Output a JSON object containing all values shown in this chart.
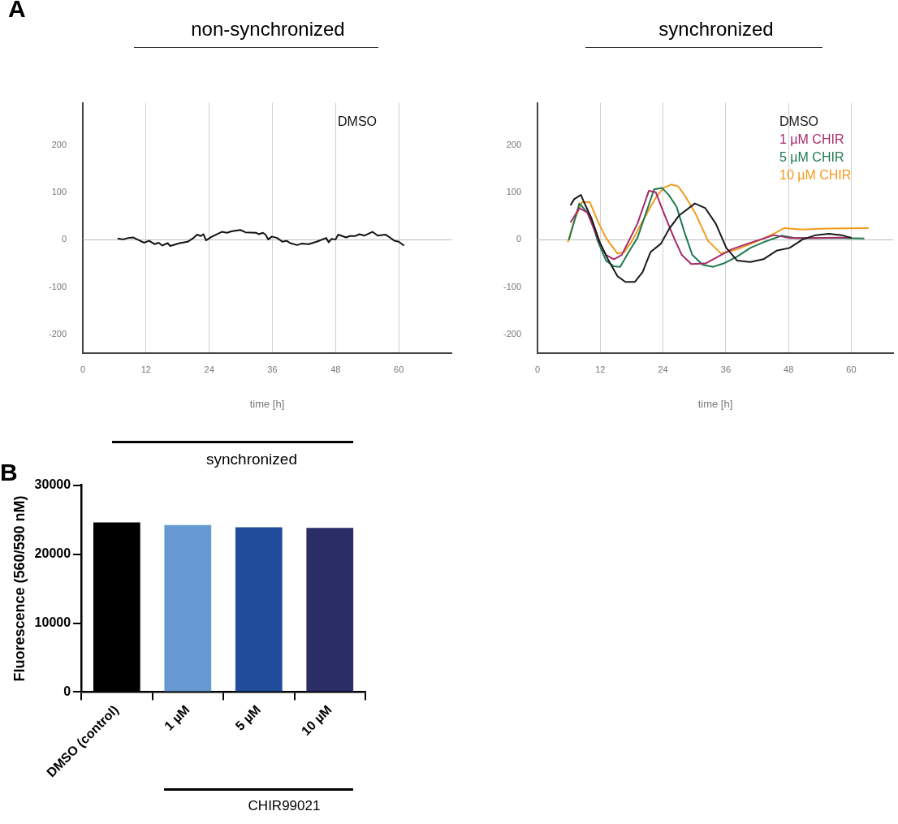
{
  "chart_data": [
    {
      "type": "line",
      "title": "non-synchronized",
      "xlabel": "time [h]",
      "annotations": [
        "A"
      ],
      "xlim": [
        0,
        70
      ],
      "xticks": [
        0,
        12,
        24,
        36,
        48,
        60
      ],
      "ylim": [
        -240,
        290
      ],
      "yticks": [
        -200,
        -100,
        0,
        100,
        200
      ],
      "grid": "x",
      "legend": "top right",
      "marker": "none",
      "line_style": "solid",
      "ref_lines": [
        {
          "axis": "y",
          "value": 0,
          "color": "#bbbbbb"
        }
      ],
      "series": [
        {
          "name": "DMSO",
          "color": "#111111",
          "x": [
            6.6,
            7.6,
            8.6,
            9.6,
            11.6,
            12.6,
            13.6,
            14.4,
            15.1,
            16.1,
            16.6,
            18.4,
            19.9,
            20.9,
            21.7,
            22.4,
            22.9,
            23.4,
            24.4,
            26.4,
            27.4,
            28.2,
            29.9,
            30.9,
            32.9,
            33.4,
            34.2,
            34.7,
            35.2,
            35.9,
            36.9,
            37.9,
            38.7,
            39.4,
            40.7,
            41.5,
            42.9,
            44.4,
            46.2,
            46.7,
            47.2,
            48,
            48.5,
            50,
            50.7,
            51.7,
            52.5,
            53.5,
            55,
            56,
            57.5,
            58.3,
            59.2,
            60,
            61
          ],
          "values": [
            3,
            1,
            4,
            5,
            -6,
            -2,
            -9,
            -6,
            -12,
            -7,
            -13,
            -7,
            -4,
            3,
            11,
            8,
            12,
            -1,
            6,
            17,
            15,
            18,
            21,
            16,
            15,
            12,
            15,
            11,
            1,
            7,
            4,
            -4,
            -2,
            -7,
            -11,
            -8,
            -9,
            -4,
            4,
            -5,
            2,
            1,
            11,
            5,
            8,
            8,
            12,
            9,
            17,
            9,
            11,
            5,
            -2,
            -4,
            -12
          ]
        }
      ]
    },
    {
      "type": "line",
      "title": "synchronized",
      "xlabel": "time [h]",
      "xlim": [
        0,
        68
      ],
      "xticks": [
        0,
        12,
        24,
        36,
        48,
        60
      ],
      "ylim": [
        -240,
        290
      ],
      "yticks": [
        -200,
        -100,
        0,
        100,
        200
      ],
      "grid": "x",
      "legend": "top right",
      "marker": "none",
      "line_style": "solid",
      "ref_lines": [
        {
          "axis": "y",
          "value": 0,
          "color": "#bbbbbb"
        }
      ],
      "series": [
        {
          "name": "DMSO",
          "color": "#1a1a1a",
          "x": [
            6.3,
            7,
            8.3,
            8.8,
            10.3,
            12,
            13.6,
            15.3,
            16.8,
            18.6,
            20.1,
            21.6,
            23.6,
            25.1,
            27.1,
            30.1,
            32.1,
            34.1,
            36.1,
            38.2,
            40.7,
            43.2,
            45.7,
            48.2,
            50.7,
            53.2,
            55.7,
            58.2,
            60
          ],
          "values": [
            73,
            86,
            95,
            82,
            46,
            -8,
            -44,
            -77,
            -89,
            -89,
            -68,
            -26,
            -8,
            22,
            52,
            77,
            67,
            34,
            -17,
            -44,
            -47,
            -41,
            -23,
            -17,
            1,
            10,
            13,
            10,
            4
          ]
        },
        {
          "name": "1 µM CHIR",
          "color": "#a52a6a",
          "x": [
            6.3,
            8,
            9.5,
            11.5,
            13.1,
            14.6,
            16.1,
            17.6,
            19.1,
            21.3,
            22.6,
            24.1,
            26.1,
            27.6,
            29.4,
            32.1,
            34.1,
            37.1,
            40.2,
            42.7,
            45.2,
            48.2,
            53.2,
            60
          ],
          "values": [
            37,
            67,
            58,
            4,
            -32,
            -41,
            -32,
            1,
            34,
            104,
            101,
            58,
            4,
            -32,
            -51,
            -50,
            -38,
            -20,
            -8,
            1,
            10,
            4,
            4,
            5
          ]
        },
        {
          "name": "5 µM CHIR",
          "color": "#1e7a50",
          "x": [
            6,
            8,
            10,
            11.5,
            13.1,
            14.6,
            15.8,
            17.6,
            19.1,
            22.3,
            23.8,
            25.1,
            26.6,
            28.1,
            29.6,
            31.6,
            33.6,
            35.6,
            38.2,
            40.7,
            43.2,
            46.7,
            49.2,
            53.2,
            58.2,
            62.5
          ],
          "values": [
            0,
            77,
            52,
            -2,
            -44,
            -56,
            -57,
            -23,
            4,
            107,
            110,
            95,
            70,
            16,
            -32,
            -53,
            -57,
            -50,
            -35,
            -17,
            -5,
            9,
            4,
            4,
            4,
            3
          ]
        },
        {
          "name": "10 µM CHIR",
          "color": "#f59a1b",
          "x": [
            5.8,
            7,
            8.5,
            10,
            11.5,
            13.1,
            15.3,
            16.6,
            18.1,
            20.1,
            22.6,
            24.1,
            25.6,
            26.9,
            28.1,
            30.1,
            32.6,
            35.1,
            38.2,
            42.2,
            45.2,
            47.2,
            50.7,
            55.7,
            63.3
          ],
          "values": [
            -5,
            40,
            80,
            80,
            40,
            4,
            -29,
            -26,
            -2,
            40,
            89,
            110,
            117,
            113,
            95,
            58,
            -2,
            -29,
            -20,
            -2,
            13,
            25,
            22,
            24,
            25
          ]
        }
      ]
    },
    {
      "type": "bar",
      "title": "synchronized",
      "ylabel": "Fluorescence (560/590 nM)",
      "annotations": [
        "B",
        "CHIR99021"
      ],
      "categories": [
        "DMSO (control)",
        "1 µM",
        "5 µM",
        "10 µM"
      ],
      "values": [
        24600,
        24200,
        23900,
        23800
      ],
      "colors": [
        "#000000",
        "#6699d1",
        "#214c9c",
        "#2a2d66"
      ],
      "ylim": [
        0,
        30000
      ],
      "yticks": [
        0,
        10000,
        20000,
        30000
      ],
      "grid": false,
      "legend": false
    }
  ]
}
